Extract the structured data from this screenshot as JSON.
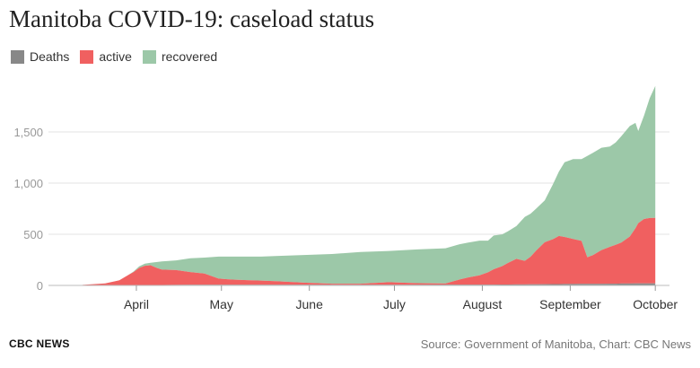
{
  "title": "Manitoba COVID-19: caseload status",
  "legend": [
    {
      "label": "Deaths",
      "color": "#888888"
    },
    {
      "label": "active",
      "color": "#f06060"
    },
    {
      "label": "recovered",
      "color": "#9cc8a8"
    }
  ],
  "footer": {
    "brand": "CBC NEWS",
    "source": "Source: Government of Manitoba, Chart: CBC News"
  },
  "chart_data": {
    "type": "area",
    "stacked": true,
    "grid": "horizontal",
    "legend_position": "top-left",
    "x_unit": "days since Mar 1, 2020",
    "ylim": [
      0,
      2000
    ],
    "y_ticks": [
      0,
      500,
      1000,
      1500
    ],
    "y_tick_labels": [
      "0",
      "500",
      "1,000",
      "1,500"
    ],
    "x_ticks": [
      {
        "day": 31,
        "label": "April"
      },
      {
        "day": 61,
        "label": "May"
      },
      {
        "day": 92,
        "label": "June"
      },
      {
        "day": 122,
        "label": "July"
      },
      {
        "day": 153,
        "label": "August"
      },
      {
        "day": 184,
        "label": "September"
      },
      {
        "day": 214,
        "label": "October"
      }
    ],
    "x": [
      12,
      20,
      25,
      28,
      30,
      32,
      34,
      36,
      38,
      40,
      45,
      50,
      55,
      60,
      65,
      70,
      75,
      80,
      90,
      100,
      110,
      120,
      130,
      140,
      145,
      148,
      152,
      155,
      157,
      160,
      162,
      165,
      168,
      170,
      172,
      175,
      178,
      180,
      182,
      185,
      188,
      190,
      192,
      195,
      198,
      200,
      202,
      205,
      207,
      208,
      210,
      212,
      214
    ],
    "series": [
      {
        "name": "Deaths",
        "color": "#888888",
        "values": [
          0,
          0,
          0,
          0,
          1,
          1,
          2,
          2,
          3,
          4,
          5,
          6,
          7,
          7,
          7,
          7,
          7,
          7,
          7,
          7,
          7,
          7,
          7,
          8,
          8,
          8,
          8,
          8,
          8,
          9,
          9,
          10,
          10,
          11,
          11,
          12,
          13,
          13,
          14,
          14,
          15,
          15,
          16,
          16,
          17,
          17,
          18,
          18,
          19,
          19,
          19,
          19,
          20
        ]
      },
      {
        "name": "active",
        "color": "#f06060",
        "values": [
          5,
          20,
          50,
          100,
          130,
          170,
          190,
          195,
          170,
          150,
          145,
          125,
          110,
          60,
          50,
          45,
          40,
          35,
          20,
          10,
          10,
          25,
          15,
          10,
          50,
          70,
          90,
          120,
          150,
          180,
          210,
          250,
          230,
          270,
          330,
          410,
          440,
          470,
          460,
          440,
          420,
          260,
          280,
          330,
          360,
          380,
          400,
          460,
          540,
          590,
          630,
          640,
          640
        ]
      },
      {
        "name": "recovered",
        "color": "#9cc8a8",
        "values": [
          0,
          0,
          0,
          0,
          5,
          15,
          20,
          25,
          55,
          80,
          95,
          135,
          155,
          215,
          225,
          230,
          235,
          245,
          270,
          290,
          310,
          305,
          330,
          345,
          345,
          340,
          340,
          310,
          330,
          310,
          310,
          320,
          430,
          420,
          410,
          410,
          540,
          630,
          730,
          780,
          800,
          990,
          1000,
          1000,
          980,
          1000,
          1040,
          1080,
          1030,
          900,
          1010,
          1170,
          1290
        ]
      }
    ]
  }
}
